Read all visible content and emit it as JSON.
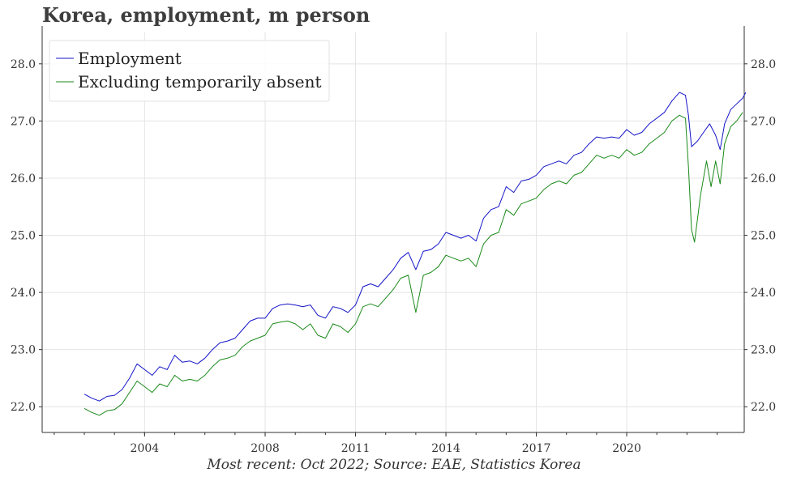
{
  "title": "Korea, employment, m person",
  "source": "Most recent: Oct 2022; Source: EAE, Statistics Korea",
  "chart_data": {
    "type": "line",
    "title": "Korea, employment, m person",
    "xlabel": "",
    "ylabel": "",
    "x_tick_labels": [
      "2004",
      "2008",
      "2011",
      "2014",
      "2017",
      "2020"
    ],
    "x_tick_dates": [
      2004.0,
      2008.0,
      2011.0,
      2014.0,
      2017.0,
      2020.0
    ],
    "y_tick_labels": [
      "22.0",
      "23.0",
      "24.0",
      "25.0",
      "26.0",
      "27.0",
      "28.0"
    ],
    "y_tick_values": [
      22.0,
      23.0,
      24.0,
      25.0,
      26.0,
      27.0,
      28.0
    ],
    "xlim": [
      2000.6,
      2023.9
    ],
    "ylim": [
      21.55,
      28.55
    ],
    "grid": true,
    "legend_position": "top-left",
    "y_axis_labels": "both sides",
    "x_unit": "decimal year",
    "series": [
      {
        "name": "Employment",
        "color": "#1414c8",
        "points": [
          [
            2002.0,
            22.22
          ],
          [
            2002.25,
            22.15
          ],
          [
            2002.5,
            22.1
          ],
          [
            2002.75,
            22.18
          ],
          [
            2003.0,
            22.2
          ],
          [
            2003.25,
            22.3
          ],
          [
            2003.5,
            22.5
          ],
          [
            2003.75,
            22.75
          ],
          [
            2004.0,
            22.65
          ],
          [
            2004.25,
            22.55
          ],
          [
            2004.5,
            22.7
          ],
          [
            2004.75,
            22.65
          ],
          [
            2005.0,
            22.9
          ],
          [
            2005.25,
            22.78
          ],
          [
            2005.5,
            22.8
          ],
          [
            2005.75,
            22.75
          ],
          [
            2006.0,
            22.85
          ],
          [
            2006.25,
            23.0
          ],
          [
            2006.5,
            23.12
          ],
          [
            2006.75,
            23.15
          ],
          [
            2007.0,
            23.2
          ],
          [
            2007.25,
            23.35
          ],
          [
            2007.5,
            23.5
          ],
          [
            2007.75,
            23.55
          ],
          [
            2008.0,
            23.55
          ],
          [
            2008.25,
            23.72
          ],
          [
            2008.5,
            23.78
          ],
          [
            2008.75,
            23.8
          ],
          [
            2009.0,
            23.78
          ],
          [
            2009.25,
            23.75
          ],
          [
            2009.5,
            23.78
          ],
          [
            2009.75,
            23.6
          ],
          [
            2010.0,
            23.55
          ],
          [
            2010.25,
            23.75
          ],
          [
            2010.5,
            23.72
          ],
          [
            2010.75,
            23.65
          ],
          [
            2011.0,
            23.78
          ],
          [
            2011.25,
            24.1
          ],
          [
            2011.5,
            24.15
          ],
          [
            2011.75,
            24.1
          ],
          [
            2012.0,
            24.25
          ],
          [
            2012.25,
            24.4
          ],
          [
            2012.5,
            24.6
          ],
          [
            2012.75,
            24.7
          ],
          [
            2013.0,
            24.4
          ],
          [
            2013.25,
            24.72
          ],
          [
            2013.5,
            24.75
          ],
          [
            2013.75,
            24.85
          ],
          [
            2014.0,
            25.05
          ],
          [
            2014.25,
            25.0
          ],
          [
            2014.5,
            24.95
          ],
          [
            2014.75,
            25.0
          ],
          [
            2015.0,
            24.9
          ],
          [
            2015.25,
            25.3
          ],
          [
            2015.5,
            25.45
          ],
          [
            2015.75,
            25.5
          ],
          [
            2016.0,
            25.85
          ],
          [
            2016.25,
            25.75
          ],
          [
            2016.5,
            25.95
          ],
          [
            2016.75,
            25.98
          ],
          [
            2017.0,
            26.05
          ],
          [
            2017.25,
            26.2
          ],
          [
            2017.5,
            26.25
          ],
          [
            2017.75,
            26.3
          ],
          [
            2018.0,
            26.25
          ],
          [
            2018.25,
            26.4
          ],
          [
            2018.5,
            26.45
          ],
          [
            2018.75,
            26.6
          ],
          [
            2019.0,
            26.72
          ],
          [
            2019.25,
            26.7
          ],
          [
            2019.5,
            26.72
          ],
          [
            2019.75,
            26.7
          ],
          [
            2020.0,
            26.85
          ],
          [
            2020.25,
            26.75
          ],
          [
            2020.5,
            26.8
          ],
          [
            2020.75,
            26.95
          ],
          [
            2021.0,
            27.05
          ],
          [
            2021.25,
            27.15
          ],
          [
            2021.5,
            27.35
          ],
          [
            2021.75,
            27.5
          ],
          [
            2021.95,
            27.45
          ],
          [
            2022.05,
            27.1
          ],
          [
            2022.15,
            26.55
          ],
          [
            2022.35,
            26.65
          ],
          [
            2022.55,
            26.8
          ],
          [
            2022.75,
            26.95
          ],
          [
            2022.95,
            26.75
          ],
          [
            2023.1,
            26.5
          ],
          [
            2023.25,
            26.95
          ],
          [
            2023.45,
            27.2
          ],
          [
            2023.65,
            27.3
          ],
          [
            2023.85,
            27.4
          ],
          [
            2023.95,
            27.5
          ]
        ]
      },
      {
        "name": "Excluding temporarily absent",
        "color": "#1a8a1a",
        "points": [
          [
            2002.0,
            21.97
          ],
          [
            2002.25,
            21.9
          ],
          [
            2002.5,
            21.85
          ],
          [
            2002.75,
            21.93
          ],
          [
            2003.0,
            21.95
          ],
          [
            2003.25,
            22.05
          ],
          [
            2003.5,
            22.25
          ],
          [
            2003.75,
            22.45
          ],
          [
            2004.0,
            22.35
          ],
          [
            2004.25,
            22.25
          ],
          [
            2004.5,
            22.4
          ],
          [
            2004.75,
            22.35
          ],
          [
            2005.0,
            22.55
          ],
          [
            2005.25,
            22.45
          ],
          [
            2005.5,
            22.48
          ],
          [
            2005.75,
            22.45
          ],
          [
            2006.0,
            22.55
          ],
          [
            2006.25,
            22.7
          ],
          [
            2006.5,
            22.82
          ],
          [
            2006.75,
            22.85
          ],
          [
            2007.0,
            22.9
          ],
          [
            2007.25,
            23.05
          ],
          [
            2007.5,
            23.15
          ],
          [
            2007.75,
            23.2
          ],
          [
            2008.0,
            23.25
          ],
          [
            2008.25,
            23.45
          ],
          [
            2008.5,
            23.48
          ],
          [
            2008.75,
            23.5
          ],
          [
            2009.0,
            23.45
          ],
          [
            2009.25,
            23.35
          ],
          [
            2009.5,
            23.45
          ],
          [
            2009.75,
            23.25
          ],
          [
            2010.0,
            23.2
          ],
          [
            2010.25,
            23.45
          ],
          [
            2010.5,
            23.4
          ],
          [
            2010.75,
            23.3
          ],
          [
            2011.0,
            23.45
          ],
          [
            2011.25,
            23.75
          ],
          [
            2011.5,
            23.8
          ],
          [
            2011.75,
            23.75
          ],
          [
            2012.0,
            23.9
          ],
          [
            2012.25,
            24.05
          ],
          [
            2012.5,
            24.25
          ],
          [
            2012.75,
            24.3
          ],
          [
            2013.0,
            23.65
          ],
          [
            2013.25,
            24.3
          ],
          [
            2013.5,
            24.35
          ],
          [
            2013.75,
            24.45
          ],
          [
            2014.0,
            24.65
          ],
          [
            2014.25,
            24.6
          ],
          [
            2014.5,
            24.55
          ],
          [
            2014.75,
            24.6
          ],
          [
            2015.0,
            24.45
          ],
          [
            2015.25,
            24.85
          ],
          [
            2015.5,
            25.0
          ],
          [
            2015.75,
            25.05
          ],
          [
            2016.0,
            25.45
          ],
          [
            2016.25,
            25.35
          ],
          [
            2016.5,
            25.55
          ],
          [
            2016.75,
            25.6
          ],
          [
            2017.0,
            25.65
          ],
          [
            2017.25,
            25.8
          ],
          [
            2017.5,
            25.9
          ],
          [
            2017.75,
            25.95
          ],
          [
            2018.0,
            25.9
          ],
          [
            2018.25,
            26.05
          ],
          [
            2018.5,
            26.1
          ],
          [
            2018.75,
            26.25
          ],
          [
            2019.0,
            26.4
          ],
          [
            2019.25,
            26.35
          ],
          [
            2019.5,
            26.4
          ],
          [
            2019.75,
            26.35
          ],
          [
            2020.0,
            26.5
          ],
          [
            2020.25,
            26.4
          ],
          [
            2020.5,
            26.45
          ],
          [
            2020.75,
            26.6
          ],
          [
            2021.0,
            26.7
          ],
          [
            2021.25,
            26.8
          ],
          [
            2021.5,
            27.0
          ],
          [
            2021.75,
            27.1
          ],
          [
            2021.95,
            27.05
          ],
          [
            2022.05,
            26.2
          ],
          [
            2022.15,
            25.1
          ],
          [
            2022.25,
            24.88
          ],
          [
            2022.45,
            25.7
          ],
          [
            2022.65,
            26.3
          ],
          [
            2022.8,
            25.85
          ],
          [
            2022.95,
            26.3
          ],
          [
            2023.1,
            25.9
          ],
          [
            2023.25,
            26.6
          ],
          [
            2023.45,
            26.9
          ],
          [
            2023.65,
            27.0
          ],
          [
            2023.85,
            27.15
          ]
        ]
      }
    ]
  }
}
